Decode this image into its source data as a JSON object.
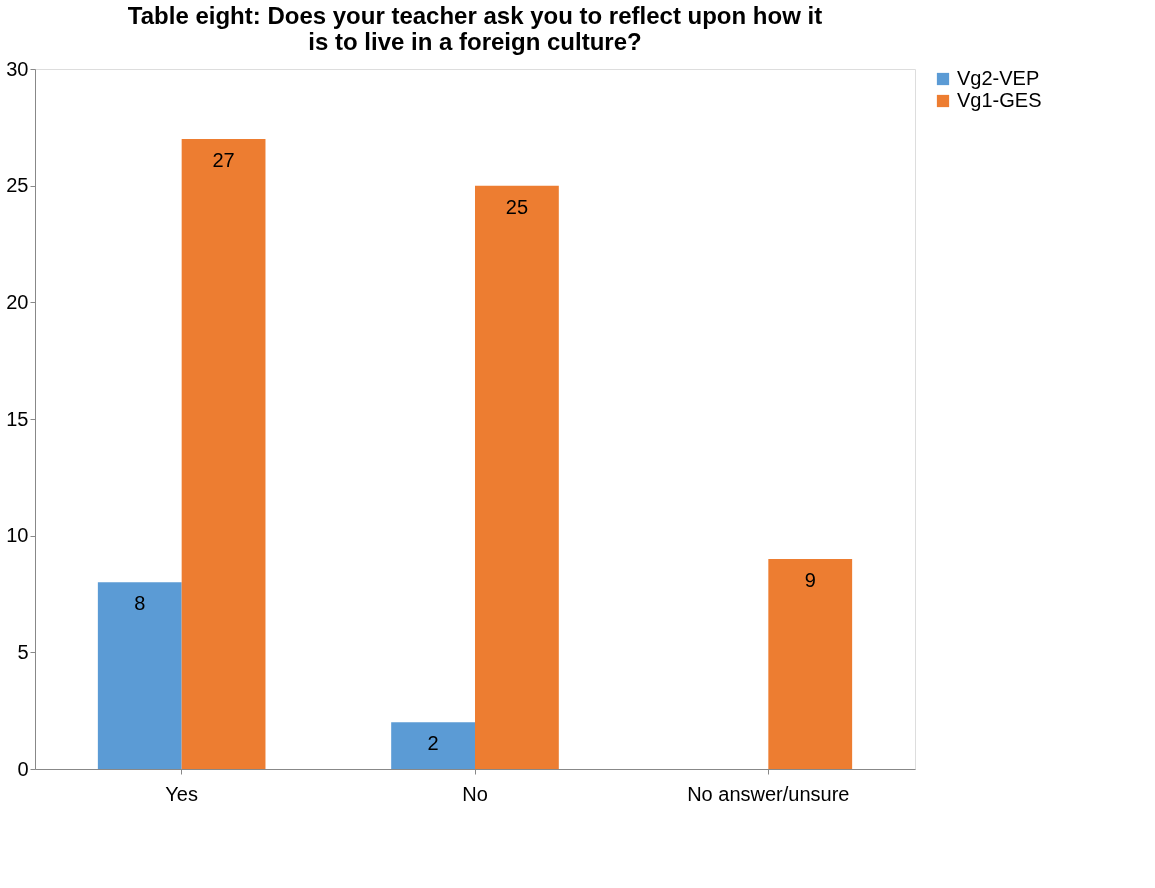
{
  "chart_data": {
    "type": "bar",
    "title": "Table eight: Does your teacher ask you to reflect upon how it is to live in a foreign culture?",
    "categories": [
      "Yes",
      "No",
      "No answer/unsure"
    ],
    "series": [
      {
        "name": "Vg2-VEP",
        "color": "#5b9bd5",
        "values": [
          8,
          2,
          null
        ]
      },
      {
        "name": "Vg1-GES",
        "color": "#ed7d31",
        "values": [
          27,
          25,
          9
        ]
      }
    ],
    "ylim": [
      0,
      30
    ],
    "yticks": [
      0,
      5,
      10,
      15,
      20,
      25,
      30
    ],
    "grid": false,
    "legend": "right",
    "data_labels": true
  }
}
